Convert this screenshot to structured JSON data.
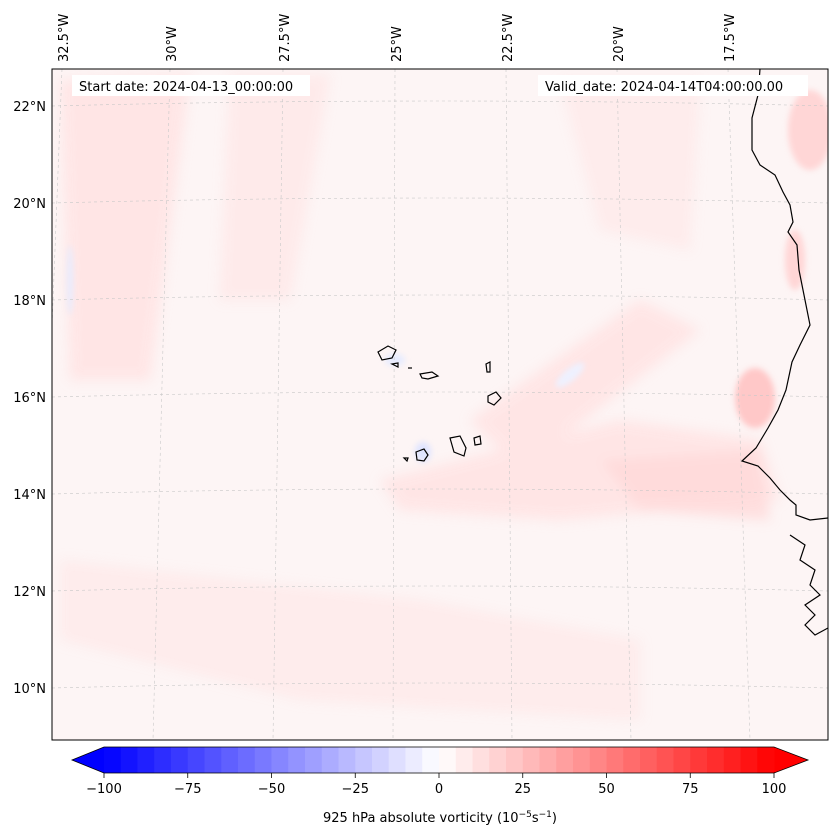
{
  "map": {
    "start_date_label": "Start date: 2024-04-13_00:00:00",
    "valid_date_label": "Valid_date: 2024-04-14T04:00:00.00",
    "field": "925 hPa absolute vorticity",
    "longitude_labels": [
      "32.5°W",
      "30°W",
      "27.5°W",
      "25°W",
      "22.5°W",
      "20°W",
      "17.5°W"
    ],
    "latitude_labels": [
      "22°N",
      "20°N",
      "18°N",
      "16°N",
      "14°N",
      "12°N",
      "10°N"
    ],
    "colors": {
      "background_tint": "#fdf5f5",
      "light_red": "#ffe4e4",
      "medium_red": "#ffc8c8",
      "light_blue": "#eef1ff",
      "coastline": "#000000"
    }
  },
  "colorbar": {
    "min": -100,
    "max": 100,
    "tick_labels": [
      "−100",
      "−75",
      "−50",
      "−25",
      "0",
      "25",
      "50",
      "75",
      "100"
    ],
    "label_main": "925 hPa absolute vorticity (10",
    "label_exp1": "−5",
    "label_mid": "s",
    "label_exp2": "−1",
    "label_end": ")",
    "low_color": "#0000ff",
    "high_color": "#ff0000"
  }
}
